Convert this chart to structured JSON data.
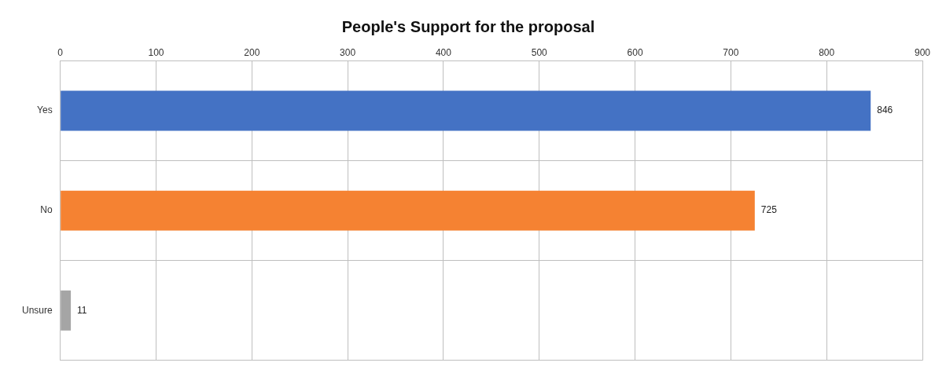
{
  "chart_data": {
    "type": "bar",
    "title": "People's Support for the proposal",
    "orientation": "horizontal",
    "categories": [
      "Yes",
      "No",
      "Unsure"
    ],
    "values": [
      846,
      725,
      11
    ],
    "colors": [
      "#4472c4",
      "#f58232",
      "#a5a5a5"
    ],
    "xlim": [
      0,
      900
    ],
    "xticks": [
      0,
      100,
      200,
      300,
      400,
      500,
      600,
      700,
      800,
      900
    ],
    "grid": true,
    "data_labels": true,
    "legend": false
  }
}
